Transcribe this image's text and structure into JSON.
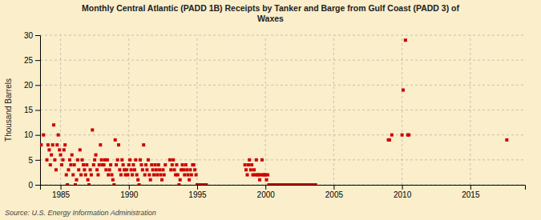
{
  "chart_data": {
    "type": "scatter",
    "title": "Monthly Central Atlantic (PADD 1B) Receipts by Tanker and Barge from Gulf Coast (PADD 3) of\nWaxes",
    "ylabel": "Thousand Barrels",
    "source": "Source: U.S. Energy Information Administration",
    "color": "#cc0000",
    "marker": "square",
    "grid": true,
    "xlim": [
      1983.5,
      2019.0
    ],
    "ylim": [
      0,
      30
    ],
    "xticks": [
      1985,
      1990,
      1995,
      2000,
      2005,
      2010,
      2015
    ],
    "yticks": [
      0,
      5,
      10,
      15,
      20,
      25,
      30
    ],
    "x": [
      1983.58,
      1983.75,
      1984.0,
      1984.08,
      1984.17,
      1984.25,
      1984.33,
      1984.42,
      1984.5,
      1984.58,
      1984.67,
      1984.75,
      1984.83,
      1984.92,
      1985.0,
      1985.08,
      1985.17,
      1985.25,
      1985.33,
      1985.42,
      1985.5,
      1985.58,
      1985.67,
      1985.75,
      1985.83,
      1985.92,
      1986.0,
      1986.08,
      1986.17,
      1986.25,
      1986.33,
      1986.42,
      1986.5,
      1986.58,
      1986.67,
      1986.75,
      1986.83,
      1986.92,
      1987.0,
      1987.08,
      1987.17,
      1987.25,
      1987.33,
      1987.42,
      1987.5,
      1987.58,
      1987.67,
      1987.75,
      1987.83,
      1987.92,
      1988.0,
      1988.08,
      1988.17,
      1988.25,
      1988.33,
      1988.42,
      1988.5,
      1988.58,
      1988.67,
      1988.75,
      1988.83,
      1988.92,
      1989.0,
      1989.08,
      1989.17,
      1989.25,
      1989.33,
      1989.42,
      1989.5,
      1989.58,
      1989.67,
      1989.75,
      1989.83,
      1989.92,
      1990.0,
      1990.08,
      1990.17,
      1990.25,
      1990.33,
      1990.42,
      1990.5,
      1990.58,
      1990.67,
      1990.75,
      1990.83,
      1990.92,
      1991.0,
      1991.08,
      1991.17,
      1991.25,
      1991.33,
      1991.42,
      1991.5,
      1991.58,
      1991.67,
      1991.75,
      1991.83,
      1991.92,
      1992.0,
      1992.08,
      1992.17,
      1992.25,
      1992.33,
      1992.42,
      1992.5,
      1992.58,
      1992.67,
      1993.0,
      1993.08,
      1993.17,
      1993.25,
      1993.33,
      1993.42,
      1993.5,
      1993.58,
      1993.67,
      1993.75,
      1993.83,
      1993.92,
      1994.0,
      1994.08,
      1994.17,
      1994.25,
      1994.33,
      1994.42,
      1994.5,
      1994.58,
      1994.67,
      1994.75,
      1994.83,
      1994.92,
      1995.0,
      1995.08,
      1995.17,
      1995.25,
      1995.33,
      1995.42,
      1995.5,
      1995.58,
      1995.67,
      1998.5,
      1998.58,
      1998.67,
      1998.75,
      1998.83,
      1998.92,
      1999.0,
      1999.08,
      1999.17,
      1999.25,
      1999.33,
      1999.42,
      1999.5,
      1999.58,
      1999.67,
      1999.75,
      1999.83,
      1999.92,
      2000.0,
      2000.08,
      2000.17,
      2000.25,
      2000.33,
      2000.42,
      2000.5,
      2000.58,
      2000.67,
      2000.75,
      2000.83,
      2000.92,
      2001.0,
      2001.08,
      2001.17,
      2001.25,
      2001.33,
      2001.42,
      2001.5,
      2001.58,
      2001.67,
      2001.75,
      2001.83,
      2001.92,
      2002.0,
      2002.08,
      2002.17,
      2002.25,
      2002.33,
      2002.42,
      2002.5,
      2002.58,
      2002.67,
      2002.75,
      2002.83,
      2002.92,
      2003.0,
      2003.08,
      2003.17,
      2003.25,
      2003.33,
      2003.42,
      2003.5,
      2003.58,
      2003.67,
      2009.0,
      2009.08,
      2009.25,
      2010.0,
      2010.08,
      2010.25,
      2010.42,
      2010.5,
      2017.67
    ],
    "values": [
      8,
      10,
      5,
      8,
      7,
      4,
      6,
      8,
      12,
      5,
      3,
      8,
      10,
      7,
      6,
      4,
      5,
      7,
      8,
      2,
      0,
      3,
      5,
      4,
      6,
      2,
      4,
      0,
      1,
      5,
      3,
      7,
      2,
      5,
      4,
      3,
      2,
      4,
      1,
      0,
      3,
      2,
      11,
      4,
      5,
      6,
      3,
      2,
      4,
      8,
      5,
      4,
      4,
      5,
      3,
      5,
      2,
      3,
      4,
      2,
      1,
      0,
      9,
      4,
      5,
      8,
      3,
      2,
      5,
      4,
      3,
      2,
      3,
      2,
      4,
      5,
      3,
      2,
      4,
      3,
      5,
      2,
      1,
      0,
      5,
      4,
      3,
      8,
      2,
      4,
      3,
      5,
      2,
      1,
      4,
      3,
      2,
      4,
      3,
      2,
      4,
      3,
      2,
      1,
      3,
      2,
      4,
      5,
      3,
      4,
      5,
      3,
      2,
      4,
      2,
      0,
      1,
      3,
      4,
      3,
      2,
      4,
      3,
      2,
      1,
      3,
      2,
      4,
      4,
      3,
      2,
      0,
      0,
      0,
      0,
      0,
      0,
      0,
      0,
      0,
      4,
      3,
      2,
      4,
      5,
      3,
      4,
      2,
      3,
      2,
      5,
      2,
      2,
      1,
      2,
      5,
      2,
      2,
      2,
      1,
      2,
      0,
      0,
      0,
      0,
      0,
      0,
      0,
      0,
      0,
      0,
      0,
      0,
      0,
      0,
      0,
      0,
      0,
      0,
      0,
      0,
      0,
      0,
      0,
      0,
      0,
      0,
      0,
      0,
      0,
      0,
      0,
      0,
      0,
      0,
      0,
      0,
      0,
      0,
      0,
      0,
      0,
      0,
      9,
      9,
      10,
      10,
      19,
      29,
      10,
      10,
      9
    ]
  }
}
